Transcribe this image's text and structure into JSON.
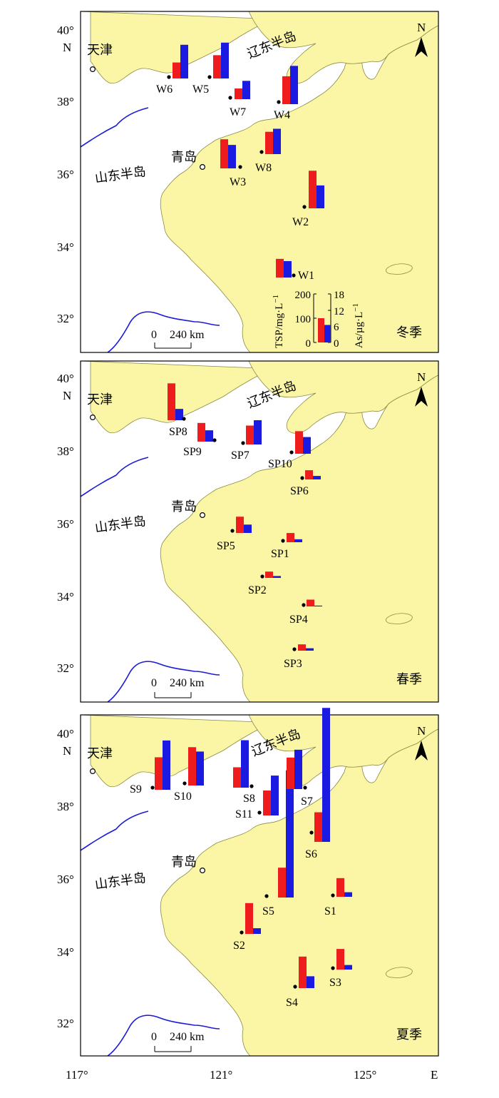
{
  "colors": {
    "land": "#fbf6a6",
    "sea": "#ffffff",
    "river": "#1a1ad8",
    "tsp": "#ee1c1c",
    "as": "#1a1ae0"
  },
  "axis": {
    "lat_labels": [
      "40°",
      "38°",
      "36°",
      "34°",
      "32°"
    ],
    "lat_unit": "N",
    "lon_labels": [
      "117°",
      "121°",
      "125°"
    ],
    "lon_unit": "E",
    "north_label": "N"
  },
  "places": {
    "tianjin": "天津",
    "liaodong": "辽东半岛",
    "shandong": "山东半岛",
    "qingdao": "青岛"
  },
  "scalebar": {
    "zero": "0",
    "dist": "240 km"
  },
  "legend": {
    "tsp_label": "TSP/mg·L",
    "as_label": "As/µg·L",
    "exponent": "−1",
    "tsp_ticks": [
      "200",
      "100",
      "0"
    ],
    "as_ticks": [
      "18",
      "12",
      "6",
      "0"
    ],
    "sample_tsp": 100,
    "sample_as": 6.5
  },
  "panels": [
    {
      "season": "冬季",
      "stations": [
        {
          "id": "W1",
          "tsp": 77,
          "as": 6.1
        },
        {
          "id": "W2",
          "tsp": 155,
          "as": 8.5
        },
        {
          "id": "W3",
          "tsp": 120,
          "as": 8.7
        },
        {
          "id": "W4",
          "tsp": 115,
          "as": 14.2
        },
        {
          "id": "W5",
          "tsp": 96,
          "as": 13.3
        },
        {
          "id": "W6",
          "tsp": 66,
          "as": 12.5
        },
        {
          "id": "W7",
          "tsp": 44,
          "as": 6.8
        },
        {
          "id": "W8",
          "tsp": 92,
          "as": 9.4
        }
      ]
    },
    {
      "season": "春季",
      "stations": [
        {
          "id": "SP1",
          "tsp": 38,
          "as": 1.1
        },
        {
          "id": "SP2",
          "tsp": 26,
          "as": 0.7
        },
        {
          "id": "SP3",
          "tsp": 26,
          "as": 0.9
        },
        {
          "id": "SP4",
          "tsp": 28,
          "as": 0.3
        },
        {
          "id": "SP5",
          "tsp": 67,
          "as": 3.1
        },
        {
          "id": "SP6",
          "tsp": 38,
          "as": 1.3
        },
        {
          "id": "SP7",
          "tsp": 78,
          "as": 9.0
        },
        {
          "id": "SP8",
          "tsp": 152,
          "as": 4.2
        },
        {
          "id": "SP9",
          "tsp": 77,
          "as": 4.2
        },
        {
          "id": "SP10",
          "tsp": 93,
          "as": 6.2
        }
      ]
    },
    {
      "season": "夏季",
      "stations": [
        {
          "id": "S1",
          "tsp": 77,
          "as": 1.7
        },
        {
          "id": "S2",
          "tsp": 127,
          "as": 2.1
        },
        {
          "id": "S3",
          "tsp": 85,
          "as": 1.7
        },
        {
          "id": "S4",
          "tsp": 130,
          "as": 4.4
        },
        {
          "id": "S5",
          "tsp": 123,
          "as": 47.2
        },
        {
          "id": "S6",
          "tsp": 122,
          "as": 49.7
        },
        {
          "id": "S7",
          "tsp": 130,
          "as": 14.6
        },
        {
          "id": "S8",
          "tsp": 84,
          "as": 17.6
        },
        {
          "id": "S9",
          "tsp": 134,
          "as": 18.3
        },
        {
          "id": "S10",
          "tsp": 158,
          "as": 12.6
        },
        {
          "id": "S11",
          "tsp": 103,
          "as": 14.8
        }
      ]
    }
  ]
}
